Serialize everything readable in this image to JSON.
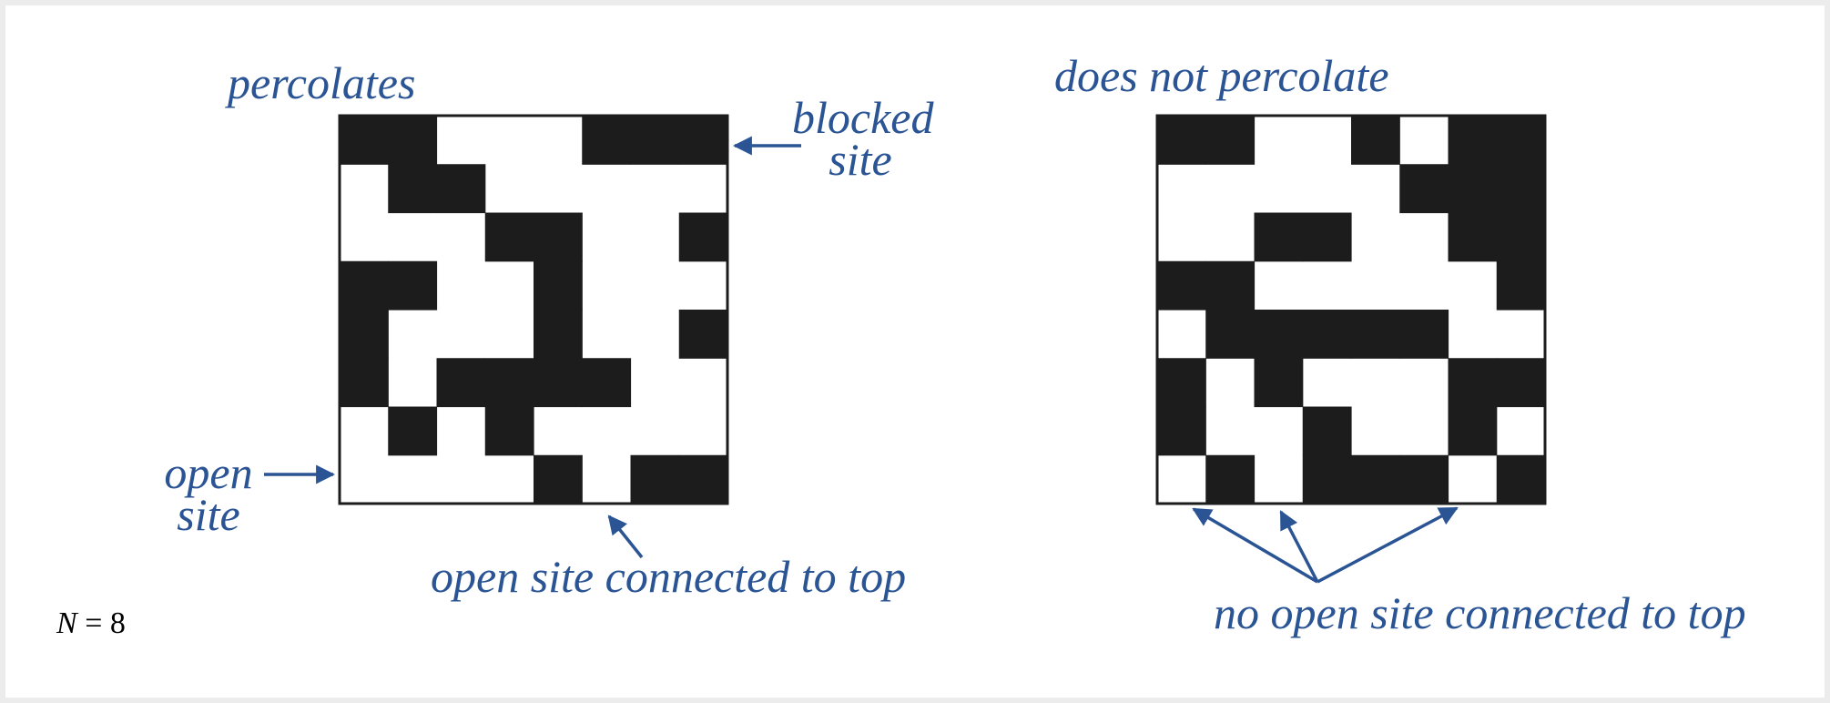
{
  "grid_size": 8,
  "panels": [
    {
      "title": "percolates",
      "grid": [
        "BBOOOBBB",
        "OBBOOOOO",
        "OOOBBOOB",
        "BBOOBOOO",
        "BOOOBOOB",
        "BOBBBBOO",
        "OBOBOOOO",
        "OOOOBOBB"
      ]
    },
    {
      "title": "does not percolate",
      "grid": [
        "BBOOBOBB",
        "OOOOOBBB",
        "OOBBOOBB",
        "BBOOOOOB",
        "OBBBBBOO",
        "BOBOOOBB",
        "BOOBOOBO",
        "OBOBBBOB"
      ]
    }
  ],
  "annotations": {
    "blocked_site": [
      "blocked",
      "site"
    ],
    "open_site": [
      "open",
      "site"
    ],
    "open_connected": "open site connected to top",
    "no_open_connected": "no open site connected to top"
  },
  "n_label": {
    "var": "N",
    "rest": " = 8"
  },
  "colors": {
    "blocked": "#1c1c1c",
    "open": "#ffffff",
    "annotation": "#2a5494",
    "background": "#ffffff"
  }
}
